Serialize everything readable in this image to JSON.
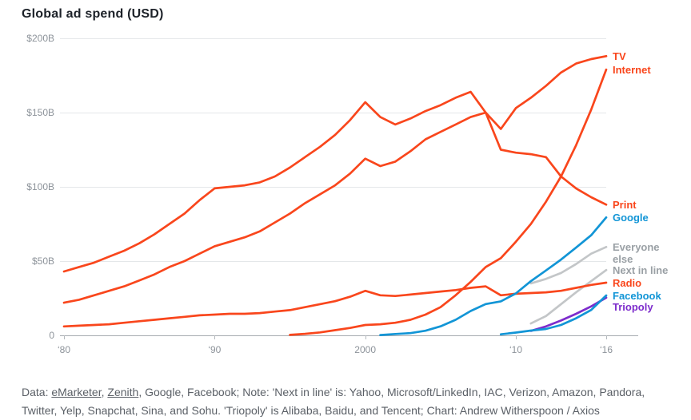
{
  "title": "Global ad spend (USD)",
  "chart_data": {
    "type": "line",
    "title": "Global ad spend (USD)",
    "unit": "USD billions",
    "x_range": [
      1980,
      2016
    ],
    "ylim": [
      0,
      200
    ],
    "grid": "horizontal",
    "legend_position": "right-edge-labels",
    "colors": {
      "orange_red": "#f9461c",
      "blue": "#1295d6",
      "gray_line": "#c3c6c8",
      "gray_label": "#9aa0a5",
      "purple": "#7d2ccc",
      "gridline": "#e4e7e9",
      "zero_line": "#a6abb0",
      "tick": "#b4b9bd"
    },
    "y_ticks": [
      {
        "label": "$200B",
        "value": 200
      },
      {
        "label": "$150B",
        "value": 150
      },
      {
        "label": "$100B",
        "value": 100
      },
      {
        "label": "$50B",
        "value": 50
      },
      {
        "label": "0",
        "value": 0
      }
    ],
    "x_ticks": [
      {
        "label": "‘80",
        "year": 1980
      },
      {
        "label": "‘90",
        "year": 1990
      },
      {
        "label": "2000",
        "year": 2000
      },
      {
        "label": "‘10",
        "year": 2010
      },
      {
        "label": "‘16",
        "year": 2016
      }
    ],
    "series": [
      {
        "name": "everyone-else",
        "label": "Everyone else",
        "label_lines": [
          "Everyone",
          "else"
        ],
        "color": "#c3c6c8",
        "label_color": "#9aa0a5",
        "start_year": 2011,
        "values": [
          35,
          38,
          42,
          48,
          55,
          59.5
        ]
      },
      {
        "name": "next-in-line",
        "label": "Next in line",
        "label_lines": [
          "Next in line"
        ],
        "color": "#c3c6c8",
        "label_color": "#9aa0a5",
        "start_year": 2011,
        "values": [
          8,
          13,
          21,
          29,
          36.5,
          44
        ]
      },
      {
        "name": "radio",
        "label": "Radio",
        "label_lines": [
          "Radio"
        ],
        "color": "#f9461c",
        "label_color": "#f9461c",
        "start_year": 1980,
        "values": [
          6,
          6.5,
          7,
          7.5,
          8.5,
          9.5,
          10.5,
          11.5,
          12.5,
          13.5,
          14,
          14.5,
          14.5,
          15,
          16,
          17,
          19,
          21,
          23,
          26,
          30,
          27,
          26.5,
          27.5,
          28.5,
          29.5,
          30.5,
          32,
          33,
          27,
          28,
          28.5,
          29,
          30,
          32,
          34,
          35.5
        ]
      },
      {
        "name": "print",
        "label": "Print",
        "label_lines": [
          "Print"
        ],
        "color": "#f9461c",
        "label_color": "#f9461c",
        "start_year": 1980,
        "values": [
          43,
          46,
          49,
          53,
          57,
          62,
          68,
          75,
          82,
          91,
          99,
          100,
          101,
          103,
          107,
          113,
          120,
          127,
          135,
          145,
          157,
          147,
          142,
          146,
          151,
          155,
          160,
          164,
          150,
          125,
          123,
          122,
          120,
          107,
          99,
          93,
          88
        ]
      },
      {
        "name": "tv",
        "label": "TV",
        "label_lines": [
          "TV"
        ],
        "color": "#f9461c",
        "label_color": "#f9461c",
        "start_year": 1980,
        "values": [
          22,
          24,
          27,
          30,
          33,
          37,
          41,
          46,
          50,
          55,
          60,
          63,
          66,
          70,
          76,
          82,
          89,
          95,
          101,
          109,
          119,
          114,
          117,
          124,
          132,
          137,
          142,
          147,
          150,
          139,
          153,
          160,
          168,
          177,
          183,
          186,
          188
        ]
      },
      {
        "name": "internet",
        "label": "Internet",
        "label_lines": [
          "Internet"
        ],
        "color": "#f9461c",
        "label_color": "#f9461c",
        "start_year": 1995,
        "values": [
          0.3,
          1,
          2,
          3.5,
          5,
          7,
          7.5,
          8.5,
          10.5,
          14,
          19,
          27,
          36,
          46,
          52,
          63,
          75,
          90,
          107,
          128,
          152,
          179
        ]
      },
      {
        "name": "google",
        "label": "Google",
        "label_lines": [
          "Google"
        ],
        "color": "#1295d6",
        "label_color": "#1295d6",
        "start_year": 2001,
        "values": [
          0.2,
          0.9,
          1.5,
          3.1,
          6.1,
          10.5,
          16.4,
          21.1,
          22.9,
          28.2,
          36.5,
          43.7,
          51,
          59.1,
          67.4,
          79.4
        ]
      },
      {
        "name": "triopoly",
        "label": "Triopoly",
        "label_lines": [
          "Triopoly"
        ],
        "color": "#7d2ccc",
        "label_color": "#7d2ccc",
        "start_year": 2011,
        "values": [
          3,
          6,
          10,
          14.5,
          19.5,
          25.4
        ]
      },
      {
        "name": "facebook",
        "label": "Facebook",
        "label_lines": [
          "Facebook"
        ],
        "color": "#1295d6",
        "label_color": "#1295d6",
        "start_year": 2009,
        "values": [
          0.7,
          1.9,
          3.2,
          4.3,
          7,
          11.5,
          17.1,
          26.9
        ]
      }
    ]
  },
  "footer": {
    "prefix": "Data: ",
    "link1": "eMarketer",
    "sep1": ", ",
    "link2": "Zenith",
    "rest": ", Google, Facebook; Note: 'Next in line' is: Yahoo, Microsoft/LinkedIn, IAC, Verizon, Amazon, Pandora, Twitter, Yelp, Snapchat, Sina, and Sohu. 'Triopoly' is Alibaba, Baidu, and Tencent; Chart: Andrew Witherspoon / Axios"
  }
}
